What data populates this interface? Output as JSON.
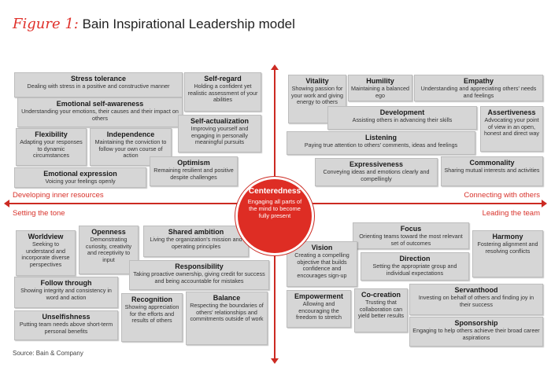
{
  "figure": {
    "label": "Figure 1:",
    "title": "Bain Inspirational Leadership model"
  },
  "center": {
    "title": "Centeredness",
    "desc": "Engaging all parts of the mind to become fully present"
  },
  "sections": {
    "developing_inner_resources": "Developing inner resources",
    "connecting_with_others": "Connecting with others",
    "setting_the_tone": "Setting the tone",
    "leading_the_team": "Leading the team"
  },
  "cards": {
    "stress_tolerance": {
      "title": "Stress tolerance",
      "desc": "Dealing with stress in a positive and constructive manner"
    },
    "self_regard": {
      "title": "Self-regard",
      "desc": "Holding a confident yet realistic assessment of your abilities"
    },
    "emotional_self_awareness": {
      "title": "Emotional self-awareness",
      "desc": "Understanding your emotions, their causes and their impact on others"
    },
    "self_actualization": {
      "title": "Self-actualization",
      "desc": "Improving yourself and engaging in personally meaningful pursuits"
    },
    "flexibility": {
      "title": "Flexibility",
      "desc": "Adapting your responses to dynamic circumstances"
    },
    "independence": {
      "title": "Independence",
      "desc": "Maintaining the conviction to follow your own course of action"
    },
    "optimism": {
      "title": "Optimism",
      "desc": "Remaining resilient and positive despite challenges"
    },
    "emotional_expression": {
      "title": "Emotional expression",
      "desc": "Voicing your feelings openly"
    },
    "vitality": {
      "title": "Vitality",
      "desc": "Showing passion for your work and giving energy to others"
    },
    "humility": {
      "title": "Humility",
      "desc": "Maintaining a balanced ego"
    },
    "empathy": {
      "title": "Empathy",
      "desc": "Understanding and appreciating others' needs and feelings"
    },
    "development": {
      "title": "Development",
      "desc": "Assisting others in advancing their skills"
    },
    "assertiveness": {
      "title": "Assertiveness",
      "desc": "Advocating your point of view in an open, honest and direct way"
    },
    "listening": {
      "title": "Listening",
      "desc": "Paying true attention to others' comments, ideas and feelings"
    },
    "expressiveness": {
      "title": "Expressiveness",
      "desc": "Conveying ideas and emotions clearly and compellingly"
    },
    "commonality": {
      "title": "Commonality",
      "desc": "Sharing mutual interests and activities"
    },
    "worldview": {
      "title": "Worldview",
      "desc": "Seeking to understand and incorporate diverse perspectives"
    },
    "openness": {
      "title": "Openness",
      "desc": "Demonstrating curiosity, creativity and receptivity to input"
    },
    "shared_ambition": {
      "title": "Shared ambition",
      "desc": "Living the organization's mission and operating principles"
    },
    "responsibility": {
      "title": "Responsibility",
      "desc": "Taking proactive ownership, giving credit for success and being accountable for mistakes"
    },
    "follow_through": {
      "title": "Follow through",
      "desc": "Showing integrity and consistency in word and action"
    },
    "recognition": {
      "title": "Recognition",
      "desc": "Showing appreciation for the efforts and results of others"
    },
    "balance": {
      "title": "Balance",
      "desc": "Respecting the boundaries of others' relationships and commitments outside of work"
    },
    "unselfishness": {
      "title": "Unselfishness",
      "desc": "Putting team needs above short-term personal benefits"
    },
    "focus": {
      "title": "Focus",
      "desc": "Orienting teams toward the most relevant set of outcomes"
    },
    "harmony": {
      "title": "Harmony",
      "desc": "Fostering alignment and resolving conflicts"
    },
    "vision": {
      "title": "Vision",
      "desc": "Creating a compelling objective that builds confidence and encourages sign-up"
    },
    "direction": {
      "title": "Direction",
      "desc": "Setting the appropriate group and individual expectations"
    },
    "empowerment": {
      "title": "Empowerment",
      "desc": "Allowing and encouraging the freedom to stretch"
    },
    "co_creation": {
      "title": "Co-creation",
      "desc": "Trusting that collaboration can yield better results"
    },
    "servanthood": {
      "title": "Servanthood",
      "desc": "Investing on behalf of others and finding joy in their success"
    },
    "sponsorship": {
      "title": "Sponsorship",
      "desc": "Engaging to help others achieve their broad career aspirations"
    }
  },
  "source": "Source: Bain & Company",
  "colors": {
    "accent": "#de2d24",
    "card_fill": "#d6d6d6",
    "axis": "#cc2a22"
  }
}
